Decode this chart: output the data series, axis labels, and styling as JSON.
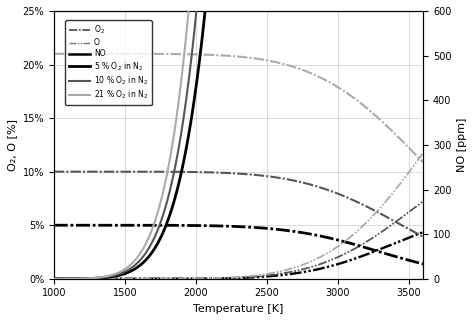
{
  "title": "",
  "xlabel": "Temperature [K]",
  "ylabel_left": "O₂, O [%]",
  "ylabel_right": "NO [ppm]",
  "T_range": [
    1000,
    3600
  ],
  "ylim_left": [
    0,
    0.25
  ],
  "ylim_right": [
    0,
    600
  ],
  "compositions": [
    {
      "o2_init": 0.05,
      "label": "5 % O₂ in N₂",
      "color": "#000000",
      "lw": 2.0
    },
    {
      "o2_init": 0.1,
      "label": "10 % O₂ in N₂",
      "color": "#555555",
      "lw": 1.5
    },
    {
      "o2_init": 0.21,
      "label": "21 % O₂ in N₂",
      "color": "#aaaaaa",
      "lw": 1.5
    }
  ],
  "background_color": "#ffffff",
  "grid_color": "#cccccc",
  "T_points": [
    1000,
    1500,
    2000,
    2500,
    3000,
    3500
  ],
  "O2_ticks": [
    0,
    0.05,
    0.1,
    0.15,
    0.2,
    0.25
  ],
  "NO_ticks": [
    0,
    100,
    200,
    300,
    400,
    500,
    600
  ]
}
